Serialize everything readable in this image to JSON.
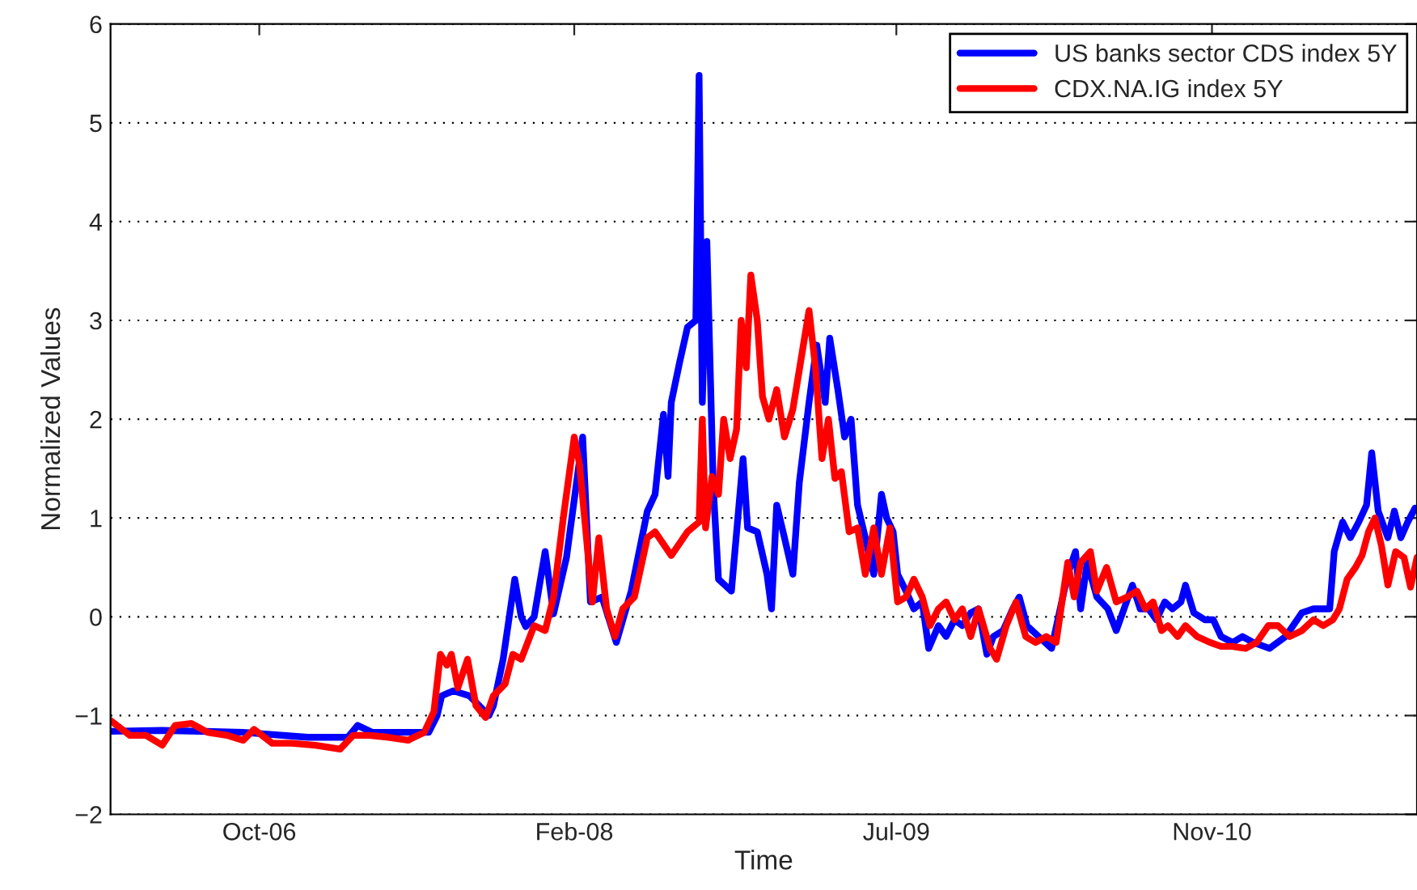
{
  "chart_data": {
    "type": "line",
    "xlabel": "Time",
    "ylabel": "Normalized Values",
    "xlim": [
      "2006-03-04",
      "2011-09-14"
    ],
    "xticks": [
      {
        "value": "2006-10-20",
        "label": "Oct-06"
      },
      {
        "value": "2008-02-19",
        "label": "Feb-08"
      },
      {
        "value": "2009-07-01",
        "label": "Jul-09"
      },
      {
        "value": "2010-11-01",
        "label": "Nov-10"
      }
    ],
    "ylim": [
      -2,
      6
    ],
    "yticks": [
      -2,
      -1,
      0,
      1,
      2,
      3,
      4,
      5,
      6
    ],
    "grid": "y",
    "legend": "top right",
    "line_style": "solid",
    "series": [
      {
        "name": "US banks sector CDS index 5Y",
        "color": "#0000ff",
        "x": [
          "2006-03-04",
          "2006-05-23",
          "2006-09-25",
          "2007-01-03",
          "2007-03-06",
          "2007-03-21",
          "2007-04-13",
          "2007-07-09",
          "2007-07-22",
          "2007-07-29",
          "2007-08-16",
          "2007-09-10",
          "2007-10-10",
          "2007-10-17",
          "2007-11-01",
          "2007-11-19",
          "2007-11-29",
          "2007-12-06",
          "2007-12-19",
          "2008-01-05",
          "2008-01-18",
          "2008-02-07",
          "2008-03-03",
          "2008-03-15",
          "2008-04-02",
          "2008-04-24",
          "2008-05-17",
          "2008-06-11",
          "2008-06-23",
          "2008-07-06",
          "2008-07-13",
          "2008-07-18",
          "2008-07-31",
          "2008-08-12",
          "2008-08-25",
          "2008-08-30",
          "2008-09-04",
          "2008-09-11",
          "2008-09-21",
          "2008-09-29",
          "2008-10-09",
          "2008-10-19",
          "2008-11-06",
          "2008-11-13",
          "2008-11-28",
          "2008-12-13",
          "2008-12-20",
          "2008-12-28",
          "2009-01-09",
          "2009-01-22",
          "2009-02-01",
          "2009-02-16",
          "2009-02-28",
          "2009-03-13",
          "2009-03-20",
          "2009-04-02",
          "2009-04-12",
          "2009-04-22",
          "2009-05-02",
          "2009-05-14",
          "2009-05-27",
          "2009-06-08",
          "2009-06-16",
          "2009-06-26",
          "2009-07-03",
          "2009-07-16",
          "2009-07-28",
          "2009-08-10",
          "2009-08-20",
          "2009-09-04",
          "2009-09-16",
          "2009-09-29",
          "2009-10-11",
          "2009-10-24",
          "2009-11-05",
          "2009-11-18",
          "2009-11-28",
          "2009-12-13",
          "2009-12-28",
          "2010-01-07",
          "2010-01-19",
          "2010-02-06",
          "2010-02-26",
          "2010-03-10",
          "2010-03-23",
          "2010-04-04",
          "2010-04-12",
          "2010-04-22",
          "2010-05-07",
          "2010-05-24",
          "2010-06-06",
          "2010-06-18",
          "2010-07-01",
          "2010-07-13",
          "2010-07-26",
          "2010-08-07",
          "2010-08-20",
          "2010-09-01",
          "2010-09-14",
          "2010-09-21",
          "2010-10-04",
          "2010-10-21",
          "2010-11-03",
          "2010-11-15",
          "2010-12-03",
          "2010-12-18",
          "2011-01-04",
          "2011-01-29",
          "2011-02-23",
          "2011-03-20",
          "2011-04-07",
          "2011-05-02",
          "2011-05-09",
          "2011-05-22",
          "2011-06-03",
          "2011-06-16",
          "2011-06-28",
          "2011-07-06",
          "2011-07-16",
          "2011-07-31",
          "2011-08-10",
          "2011-08-20",
          "2011-08-30",
          "2011-09-11"
        ],
        "values": [
          -1.16,
          -1.15,
          -1.17,
          -1.22,
          -1.22,
          -1.1,
          -1.17,
          -1.17,
          -1.0,
          -0.8,
          -0.75,
          -0.8,
          -1.0,
          -0.9,
          -0.43,
          0.38,
          0.0,
          -0.1,
          0.0,
          0.66,
          0.03,
          0.6,
          1.82,
          0.15,
          0.2,
          -0.26,
          0.26,
          1.07,
          1.24,
          2.05,
          1.42,
          2.17,
          2.58,
          2.93,
          3.0,
          5.48,
          2.17,
          3.8,
          1.3,
          0.38,
          0.32,
          0.26,
          1.6,
          0.9,
          0.86,
          0.43,
          0.08,
          1.13,
          0.8,
          0.43,
          1.36,
          2.17,
          2.75,
          2.17,
          2.82,
          2.28,
          1.82,
          2.0,
          1.13,
          0.8,
          0.43,
          1.24,
          1.0,
          0.86,
          0.43,
          0.26,
          0.08,
          0.15,
          -0.32,
          -0.09,
          -0.2,
          -0.03,
          -0.09,
          0.04,
          0.08,
          -0.38,
          -0.2,
          -0.14,
          0.08,
          0.2,
          -0.09,
          -0.2,
          -0.32,
          0.04,
          0.43,
          0.66,
          0.08,
          0.55,
          0.2,
          0.08,
          -0.14,
          0.08,
          0.32,
          0.08,
          0.08,
          -0.03,
          0.15,
          0.08,
          0.15,
          0.32,
          0.04,
          -0.03,
          -0.03,
          -0.2,
          -0.26,
          -0.2,
          -0.26,
          -0.32,
          -0.2,
          0.04,
          0.08,
          0.08,
          0.66,
          0.96,
          0.8,
          0.96,
          1.13,
          1.66,
          1.07,
          0.8,
          1.07,
          0.8,
          0.95,
          1.1
        ]
      },
      {
        "name": "CDX.NA.IG index 5Y",
        "color": "#ff0000",
        "x": [
          "2006-03-04",
          "2006-04-03",
          "2006-04-28",
          "2006-05-23",
          "2006-06-12",
          "2006-07-07",
          "2006-08-01",
          "2006-08-31",
          "2006-09-25",
          "2006-10-12",
          "2006-11-09",
          "2006-12-09",
          "2007-01-15",
          "2007-02-22",
          "2007-03-14",
          "2007-04-08",
          "2007-05-08",
          "2007-06-07",
          "2007-07-02",
          "2007-07-17",
          "2007-07-27",
          "2007-08-06",
          "2007-08-13",
          "2007-08-23",
          "2007-09-07",
          "2007-09-20",
          "2007-10-05",
          "2007-10-17",
          "2007-11-04",
          "2007-11-16",
          "2007-11-29",
          "2007-12-19",
          "2008-01-05",
          "2008-01-18",
          "2008-02-02",
          "2008-02-19",
          "2008-02-27",
          "2008-03-08",
          "2008-03-18",
          "2008-03-28",
          "2008-04-09",
          "2008-04-22",
          "2008-05-04",
          "2008-05-22",
          "2008-06-11",
          "2008-06-23",
          "2008-07-18",
          "2008-08-12",
          "2008-08-30",
          "2008-09-04",
          "2008-09-09",
          "2008-09-19",
          "2008-09-29",
          "2008-10-07",
          "2008-10-17",
          "2008-10-27",
          "2008-11-03",
          "2008-11-11",
          "2008-11-18",
          "2008-11-28",
          "2008-12-06",
          "2008-12-16",
          "2008-12-28",
          "2009-01-09",
          "2009-01-22",
          "2009-02-03",
          "2009-02-16",
          "2009-02-26",
          "2009-03-08",
          "2009-03-18",
          "2009-03-28",
          "2009-04-07",
          "2009-04-19",
          "2009-05-02",
          "2009-05-14",
          "2009-05-27",
          "2009-06-08",
          "2009-06-21",
          "2009-07-03",
          "2009-07-16",
          "2009-07-28",
          "2009-08-10",
          "2009-08-22",
          "2009-09-04",
          "2009-09-16",
          "2009-09-29",
          "2009-10-11",
          "2009-10-24",
          "2009-11-05",
          "2009-11-23",
          "2009-12-03",
          "2009-12-18",
          "2010-01-02",
          "2010-01-17",
          "2010-02-01",
          "2010-02-18",
          "2010-03-05",
          "2010-03-23",
          "2010-04-02",
          "2010-04-12",
          "2010-04-27",
          "2010-05-07",
          "2010-05-22",
          "2010-06-06",
          "2010-06-23",
          "2010-07-08",
          "2010-07-21",
          "2010-08-02",
          "2010-08-15",
          "2010-08-25",
          "2010-09-09",
          "2010-09-21",
          "2010-10-09",
          "2010-10-29",
          "2010-11-15",
          "2010-12-03",
          "2010-12-23",
          "2011-01-09",
          "2011-01-27",
          "2011-02-11",
          "2011-03-01",
          "2011-03-20",
          "2011-04-07",
          "2011-04-22",
          "2011-05-07",
          "2011-05-17",
          "2011-05-29",
          "2011-06-11",
          "2011-06-21",
          "2011-07-01",
          "2011-07-11",
          "2011-07-21",
          "2011-07-31",
          "2011-08-12",
          "2011-08-25",
          "2011-09-04",
          "2011-09-14"
        ],
        "values": [
          -1.05,
          -1.2,
          -1.2,
          -1.3,
          -1.1,
          -1.08,
          -1.17,
          -1.2,
          -1.25,
          -1.14,
          -1.28,
          -1.28,
          -1.3,
          -1.34,
          -1.2,
          -1.2,
          -1.22,
          -1.25,
          -1.17,
          -0.96,
          -0.38,
          -0.49,
          -0.38,
          -0.72,
          -0.43,
          -0.9,
          -1.02,
          -0.8,
          -0.68,
          -0.38,
          -0.43,
          -0.09,
          -0.14,
          0.2,
          1.0,
          1.82,
          1.55,
          0.86,
          0.15,
          0.8,
          0.08,
          -0.2,
          0.08,
          0.2,
          0.8,
          0.86,
          0.62,
          0.86,
          0.96,
          2.0,
          0.9,
          1.42,
          1.24,
          2.0,
          1.6,
          1.9,
          3.0,
          2.52,
          3.46,
          3.0,
          2.23,
          2.0,
          2.3,
          1.82,
          2.1,
          2.58,
          3.1,
          2.52,
          1.6,
          2.0,
          1.4,
          1.47,
          0.86,
          0.9,
          0.43,
          0.9,
          0.43,
          0.9,
          0.15,
          0.2,
          0.38,
          0.2,
          -0.09,
          0.08,
          0.15,
          -0.03,
          0.08,
          -0.2,
          0.08,
          -0.32,
          -0.43,
          -0.09,
          0.15,
          -0.2,
          -0.26,
          -0.2,
          -0.26,
          0.55,
          0.2,
          0.55,
          0.66,
          0.26,
          0.5,
          0.15,
          0.2,
          0.26,
          0.08,
          0.15,
          -0.14,
          -0.09,
          -0.2,
          -0.09,
          -0.2,
          -0.26,
          -0.3,
          -0.3,
          -0.32,
          -0.26,
          -0.09,
          -0.09,
          -0.2,
          -0.14,
          -0.03,
          -0.09,
          -0.03,
          0.08,
          0.38,
          0.5,
          0.62,
          0.86,
          1.0,
          0.72,
          0.32,
          0.66,
          0.6,
          0.3,
          0.6
        ]
      }
    ]
  }
}
